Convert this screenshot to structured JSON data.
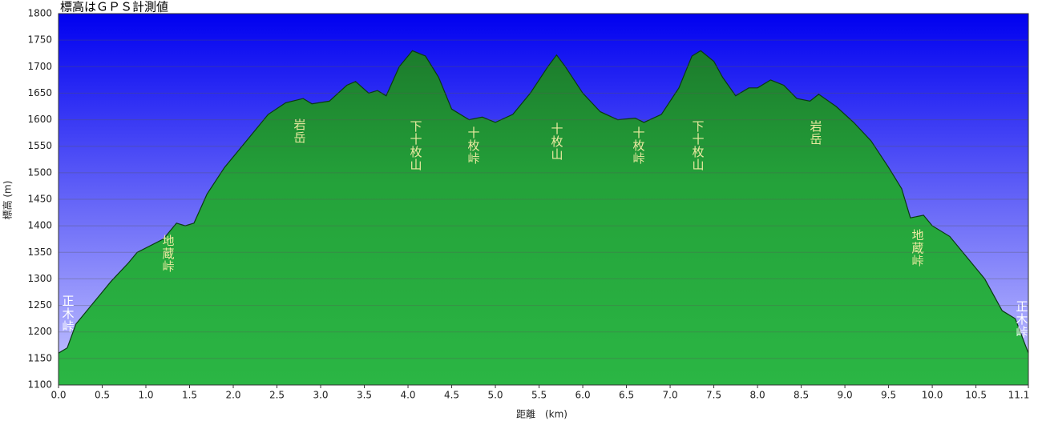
{
  "chart_data": {
    "type": "area",
    "title": "標高はＧＰＳ計測値",
    "x_label": "距離　(km)",
    "y_label": "標高 (m)",
    "x": [
      0.0,
      0.1,
      0.2,
      0.3,
      0.5,
      0.6,
      0.8,
      0.9,
      1.2,
      1.3,
      1.35,
      1.45,
      1.55,
      1.7,
      1.9,
      2.1,
      2.2,
      2.4,
      2.6,
      2.8,
      2.9,
      3.1,
      3.3,
      3.4,
      3.55,
      3.65,
      3.75,
      3.9,
      4.05,
      4.2,
      4.35,
      4.5,
      4.7,
      4.85,
      5.0,
      5.2,
      5.4,
      5.6,
      5.7,
      5.8,
      6.0,
      6.2,
      6.4,
      6.6,
      6.7,
      6.9,
      7.1,
      7.25,
      7.35,
      7.5,
      7.6,
      7.75,
      7.9,
      8.0,
      8.15,
      8.3,
      8.45,
      8.6,
      8.7,
      8.9,
      9.1,
      9.3,
      9.5,
      9.65,
      9.75,
      9.9,
      10.0,
      10.2,
      10.4,
      10.6,
      10.8,
      10.95,
      11.1
    ],
    "values": [
      1160,
      1170,
      1215,
      1235,
      1275,
      1295,
      1330,
      1350,
      1375,
      1395,
      1405,
      1400,
      1405,
      1460,
      1510,
      1550,
      1570,
      1610,
      1632,
      1640,
      1630,
      1635,
      1665,
      1672,
      1650,
      1655,
      1645,
      1700,
      1730,
      1720,
      1680,
      1620,
      1600,
      1605,
      1595,
      1610,
      1650,
      1700,
      1722,
      1700,
      1650,
      1615,
      1600,
      1603,
      1595,
      1610,
      1660,
      1720,
      1730,
      1710,
      1680,
      1645,
      1660,
      1660,
      1675,
      1665,
      1640,
      1635,
      1648,
      1625,
      1595,
      1560,
      1510,
      1470,
      1415,
      1420,
      1400,
      1380,
      1340,
      1300,
      1240,
      1225,
      1160
    ],
    "color": "#22a83a",
    "xlim": [
      0,
      11.1
    ],
    "xticks": [
      {
        "value": 0,
        "label": "0.0"
      },
      0.5,
      {
        "value": 1,
        "label": "1.0"
      },
      1.5,
      {
        "value": 2,
        "label": "2.0"
      },
      2.5,
      {
        "value": 3,
        "label": "3.0"
      },
      3.5,
      {
        "value": 4,
        "label": "4.0"
      },
      4.5,
      {
        "value": 5,
        "label": "5.0"
      },
      5.5,
      {
        "value": 6,
        "label": "6.0"
      },
      6.5,
      {
        "value": 7,
        "label": "7.0"
      },
      7.5,
      {
        "value": 8,
        "label": "8.0"
      },
      8.5,
      {
        "value": 9,
        "label": "9.0"
      },
      9.5,
      {
        "value": 10,
        "label": "10.0"
      },
      10.5,
      11.1
    ],
    "ylim": [
      1100,
      1800
    ],
    "yticks": [
      1100,
      1150,
      1200,
      1250,
      1300,
      1350,
      1400,
      1450,
      1500,
      1550,
      1600,
      1650,
      1700,
      1750,
      1800
    ],
    "grid": true,
    "annotations": [
      "正木峠",
      "地蔵峠",
      "岩岳",
      "下十枚山",
      "十枚峠",
      "十枚山",
      "十枚峠",
      "下十枚山",
      "岩岳",
      "地蔵峠",
      "正木峠"
    ]
  }
}
